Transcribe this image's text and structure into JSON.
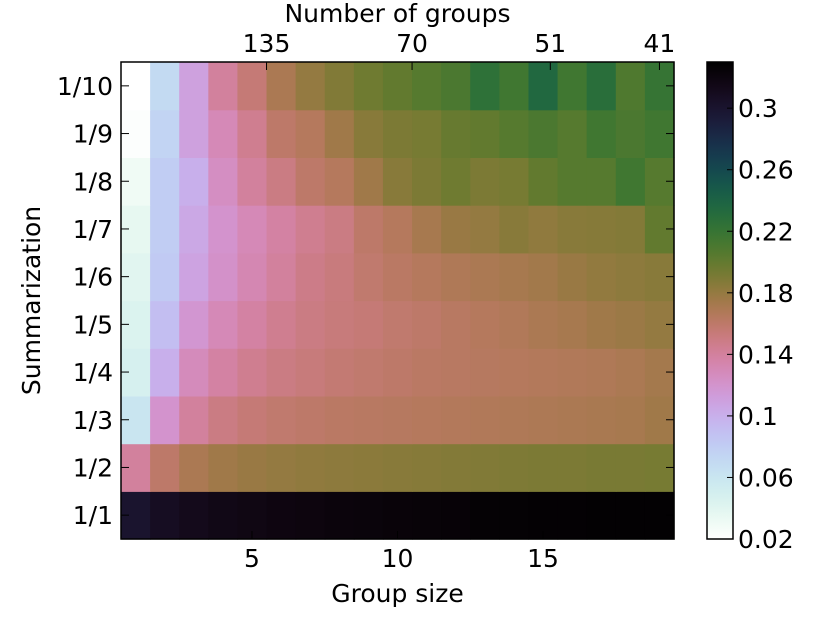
{
  "chart_data": {
    "type": "heatmap",
    "xlabel": "Group size",
    "ylabel": "Summarization",
    "top_xlabel": "Number of groups",
    "x_range": [
      1,
      19
    ],
    "x_ticks": [
      5,
      10,
      15
    ],
    "top_ticks": [
      {
        "label": "135",
        "x": 5.5
      },
      {
        "label": "70",
        "x": 10.5
      },
      {
        "label": "51",
        "x": 15.25
      },
      {
        "label": "41",
        "x": 19
      }
    ],
    "y_categories": [
      "1/1",
      "1/2",
      "1/3",
      "1/4",
      "1/5",
      "1/6",
      "1/7",
      "1/8",
      "1/9",
      "1/10"
    ],
    "colorbar": {
      "range": [
        0.02,
        0.33
      ],
      "ticks": [
        "0.02",
        "0.06",
        "0.1",
        "0.14",
        "0.18",
        "0.22",
        "0.26",
        "0.3"
      ],
      "colormap": "cubehelix_r"
    },
    "values": [
      [
        0.3,
        0.308,
        0.312,
        0.315,
        0.317,
        0.319,
        0.32,
        0.321,
        0.322,
        0.323,
        0.324,
        0.325,
        0.326,
        0.326,
        0.327,
        0.327,
        0.328,
        0.328,
        0.328
      ],
      [
        0.14,
        0.16,
        0.17,
        0.175,
        0.178,
        0.18,
        0.182,
        0.183,
        0.184,
        0.185,
        0.186,
        0.187,
        0.188,
        0.189,
        0.19,
        0.19,
        0.191,
        0.191,
        0.192
      ],
      [
        0.06,
        0.12,
        0.14,
        0.15,
        0.155,
        0.158,
        0.16,
        0.162,
        0.163,
        0.164,
        0.165,
        0.166,
        0.167,
        0.168,
        0.169,
        0.17,
        0.171,
        0.172,
        0.175
      ],
      [
        0.048,
        0.1,
        0.128,
        0.138,
        0.145,
        0.15,
        0.153,
        0.156,
        0.158,
        0.16,
        0.162,
        0.163,
        0.164,
        0.165,
        0.166,
        0.167,
        0.168,
        0.17,
        0.173
      ],
      [
        0.044,
        0.09,
        0.118,
        0.13,
        0.138,
        0.145,
        0.15,
        0.153,
        0.155,
        0.158,
        0.16,
        0.163,
        0.165,
        0.167,
        0.17,
        0.172,
        0.175,
        0.177,
        0.18
      ],
      [
        0.04,
        0.082,
        0.108,
        0.122,
        0.132,
        0.14,
        0.148,
        0.152,
        0.158,
        0.162,
        0.165,
        0.168,
        0.17,
        0.172,
        0.174,
        0.178,
        0.181,
        0.183,
        0.185
      ],
      [
        0.036,
        0.08,
        0.105,
        0.12,
        0.13,
        0.138,
        0.145,
        0.15,
        0.16,
        0.165,
        0.172,
        0.178,
        0.18,
        0.185,
        0.182,
        0.185,
        0.186,
        0.187,
        0.2
      ],
      [
        0.03,
        0.08,
        0.1,
        0.125,
        0.14,
        0.15,
        0.16,
        0.165,
        0.175,
        0.185,
        0.19,
        0.195,
        0.19,
        0.192,
        0.2,
        0.205,
        0.205,
        0.215,
        0.205
      ],
      [
        0.022,
        0.075,
        0.11,
        0.13,
        0.145,
        0.16,
        0.165,
        0.175,
        0.185,
        0.19,
        0.192,
        0.198,
        0.2,
        0.205,
        0.21,
        0.205,
        0.215,
        0.21,
        0.215
      ],
      [
        0.02,
        0.07,
        0.11,
        0.14,
        0.155,
        0.17,
        0.18,
        0.188,
        0.195,
        0.2,
        0.205,
        0.21,
        0.225,
        0.215,
        0.235,
        0.215,
        0.228,
        0.208,
        0.22
      ]
    ]
  }
}
